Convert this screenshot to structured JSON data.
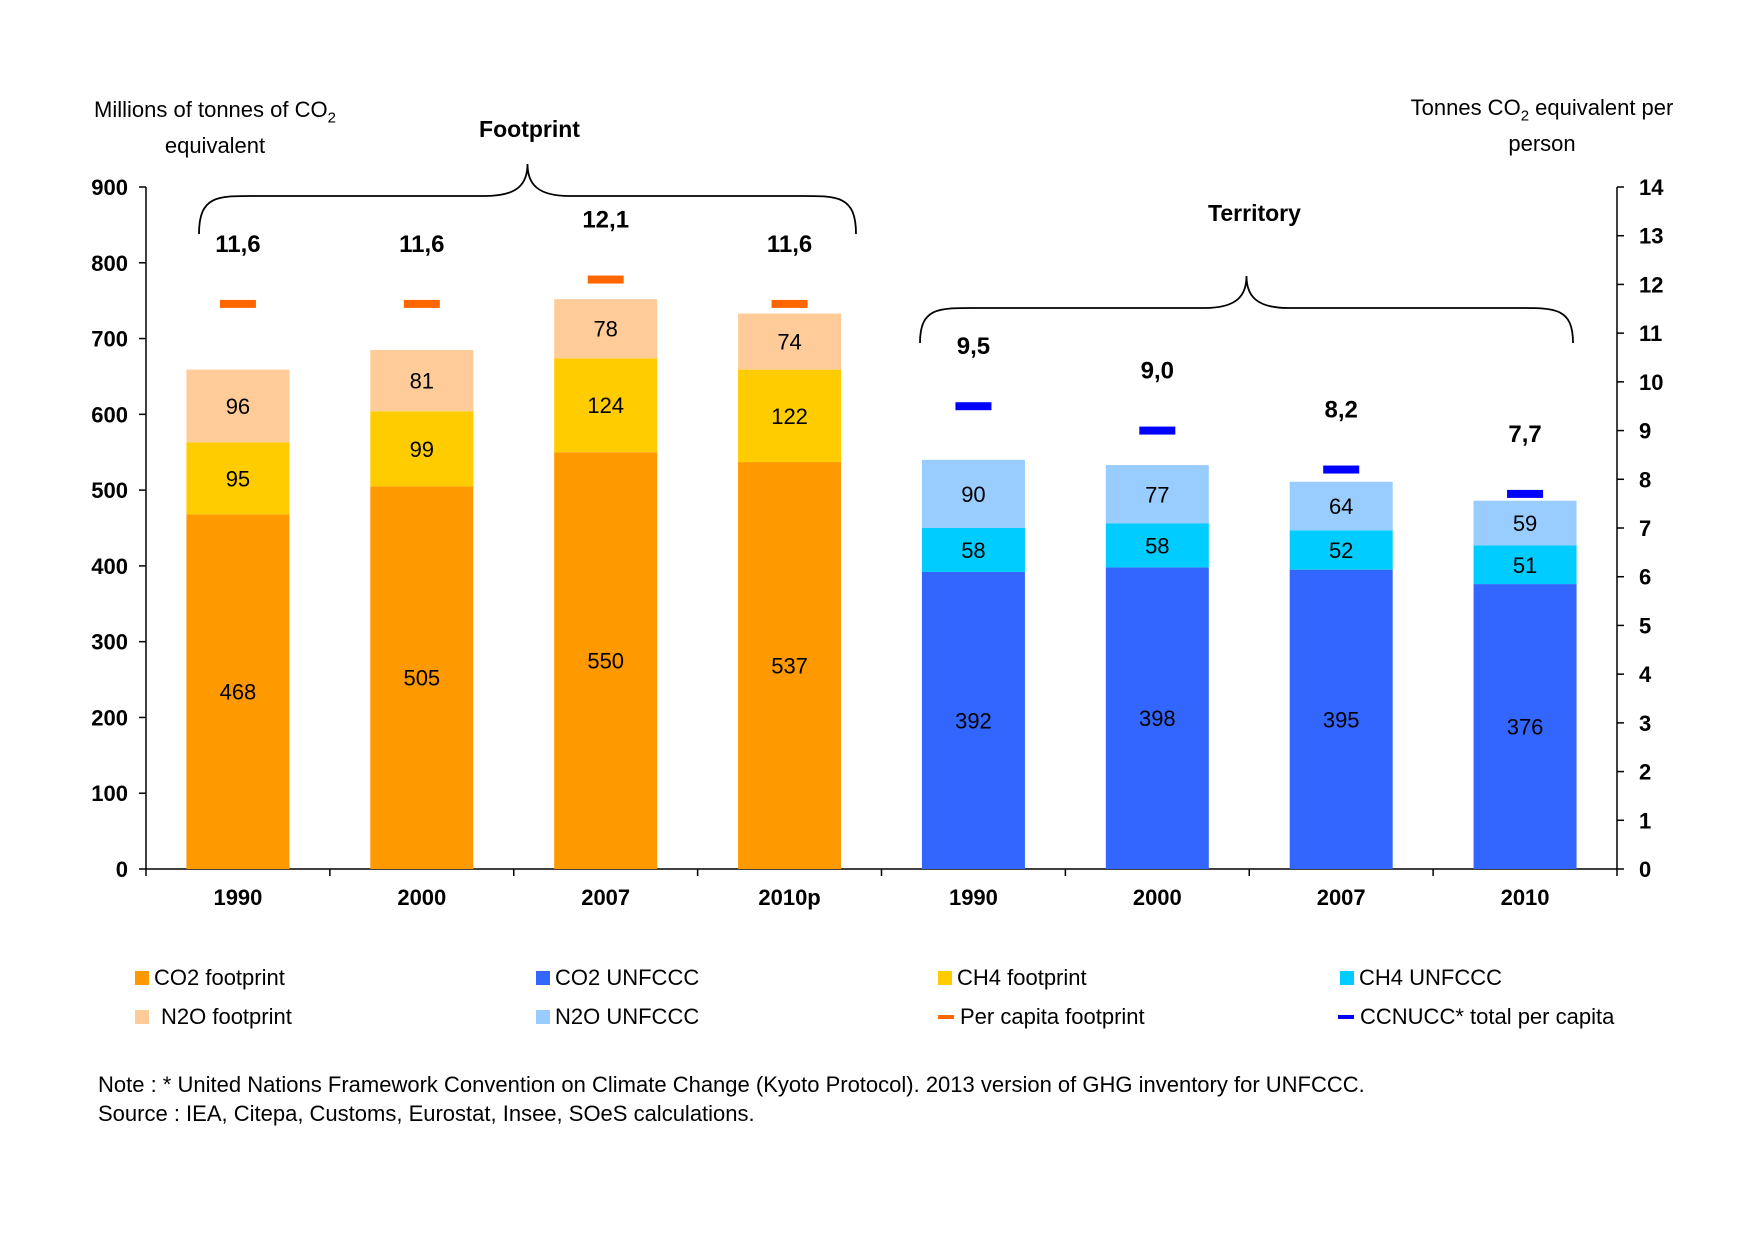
{
  "chart_data": {
    "type": "bar",
    "stacked": true,
    "categories": [
      "1990",
      "2000",
      "2007",
      "2010p",
      "1990",
      "2000",
      "2007",
      "2010"
    ],
    "group_labels": [
      "Footprint",
      "Territory"
    ],
    "left_axis": {
      "title_prefix": "Millions of tonnes of CO",
      "title_sub": "2",
      "title_line2": "equivalent",
      "ylim": [
        0,
        900
      ],
      "ticks": [
        "0",
        "100",
        "200",
        "300",
        "400",
        "500",
        "600",
        "700",
        "800",
        "900"
      ]
    },
    "right_axis": {
      "title_prefix": "Tonnes CO",
      "title_sub": "2",
      "title_suffix": " equivalent per",
      "title_line2": "person",
      "ylim": [
        0,
        14
      ],
      "ticks": [
        "0",
        "1",
        "2",
        "3",
        "4",
        "5",
        "6",
        "7",
        "8",
        "9",
        "10",
        "11",
        "12",
        "13",
        "14"
      ]
    },
    "series": [
      {
        "name": "CO2 footprint",
        "color": "#FF9900",
        "values": [
          468,
          505,
          550,
          537,
          null,
          null,
          null,
          null
        ],
        "labels": [
          "468",
          "505",
          "550",
          "537",
          "",
          "",
          "",
          ""
        ]
      },
      {
        "name": "CH4 footprint",
        "color": "#FFCC00",
        "values": [
          95,
          99,
          124,
          122,
          null,
          null,
          null,
          null
        ],
        "labels": [
          "95",
          "99",
          "124",
          "122",
          "",
          "",
          "",
          ""
        ]
      },
      {
        "name": "N2O footprint",
        "color": "#FFCC99",
        "values": [
          96,
          81,
          78,
          74,
          null,
          null,
          null,
          null
        ],
        "labels": [
          "96",
          "81",
          "78",
          "74",
          "",
          "",
          "",
          ""
        ]
      },
      {
        "name": "CO2 UNFCCC",
        "color": "#3366FF",
        "values": [
          null,
          null,
          null,
          null,
          392,
          398,
          395,
          376
        ],
        "labels": [
          "",
          "",
          "",
          "",
          "392",
          "398",
          "395",
          "376"
        ]
      },
      {
        "name": "CH4 UNFCCC",
        "color": "#00CCFF",
        "values": [
          null,
          null,
          null,
          null,
          58,
          58,
          52,
          51
        ],
        "labels": [
          "",
          "",
          "",
          "",
          "58",
          "58",
          "52",
          "51"
        ]
      },
      {
        "name": "N2O UNFCCC",
        "color": "#99CCFF",
        "values": [
          null,
          null,
          null,
          null,
          90,
          77,
          64,
          59
        ],
        "labels": [
          "",
          "",
          "",
          "",
          "90",
          "77",
          "64",
          "59"
        ]
      }
    ],
    "per_capita": [
      {
        "name": "Per capita footprint",
        "color": "#FF6600",
        "values": [
          11.6,
          11.6,
          12.1,
          11.6,
          null,
          null,
          null,
          null
        ],
        "labels": [
          "11,6",
          "11,6",
          "12,1",
          "11,6",
          "",
          "",
          "",
          ""
        ]
      },
      {
        "name": "CCNUCC* total per capita",
        "color": "#0000FF",
        "values": [
          null,
          null,
          null,
          null,
          9.5,
          9.0,
          8.2,
          7.7
        ],
        "labels": [
          "",
          "",
          "",
          "",
          "9,5",
          "9,0",
          "8,2",
          "7,7"
        ]
      }
    ],
    "legend": [
      "CO2 footprint",
      "CO2 UNFCCC",
      "CH4 footprint",
      "CH4 UNFCCC",
      "N2O footprint",
      "N2O UNFCCC",
      "Per capita footprint",
      "CCNUCC* total per capita"
    ],
    "legend_placement": "bottom",
    "grid": false
  },
  "notes": {
    "line1": "Note : * United Nations Framework Convention on Climate Change (Kyoto Protocol). 2013 version of GHG inventory for UNFCCC.",
    "line2": "Source : IEA, Citepa, Customs, Eurostat, Insee, SOeS calculations."
  }
}
